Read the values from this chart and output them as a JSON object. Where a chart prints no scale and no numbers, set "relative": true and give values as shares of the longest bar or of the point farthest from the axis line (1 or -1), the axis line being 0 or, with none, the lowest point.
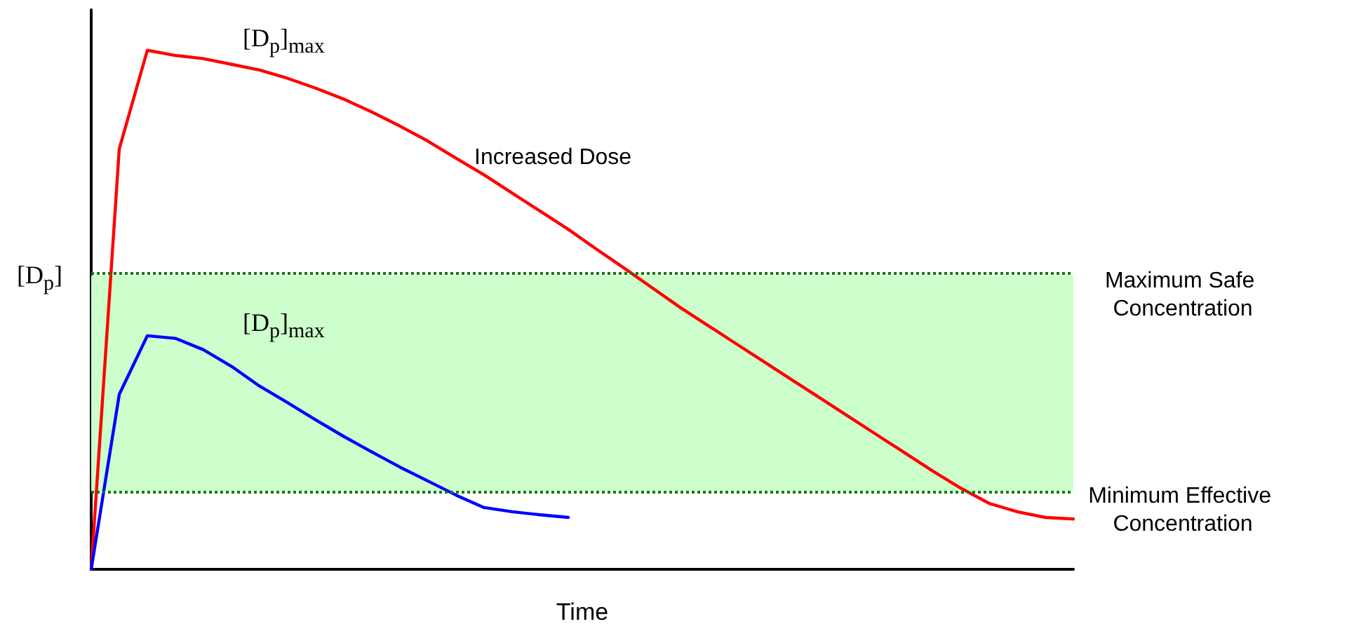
{
  "chart_data": {
    "type": "line",
    "relative": true,
    "xlabel": "Time",
    "ylabel": "[D$_{p}$]",
    "categories": [
      null,
      null,
      null,
      null,
      null,
      null,
      null,
      null,
      null,
      null,
      null,
      null,
      null,
      null,
      null,
      null,
      null,
      null,
      null,
      null,
      null,
      null,
      null,
      null,
      null,
      null,
      null,
      null,
      null,
      null,
      null,
      null,
      null,
      null,
      null,
      null
    ],
    "series": [
      {
        "name": "Increased Dose",
        "color": "#ff0000",
        "values": [
          0,
          0.81,
          1.0,
          0.99,
          0.984,
          0.973,
          0.962,
          0.946,
          0.927,
          0.906,
          0.881,
          0.854,
          0.825,
          0.792,
          0.76,
          0.725,
          0.69,
          0.655,
          0.617,
          0.58,
          0.542,
          0.504,
          0.469,
          0.434,
          0.399,
          0.364,
          0.329,
          0.294,
          0.259,
          0.224,
          0.189,
          0.156,
          0.127,
          0.111,
          0.1,
          0.097
        ]
      },
      {
        "color": "#0000ff",
        "values": [
          0,
          0.337,
          0.45,
          0.445,
          0.423,
          0.391,
          0.353,
          0.321,
          0.288,
          0.256,
          0.226,
          0.197,
          0.17,
          0.143,
          0.119,
          0.111,
          0.105,
          0.1,
          null,
          null,
          null,
          null,
          null,
          null,
          null,
          null,
          null,
          null,
          null,
          null,
          null,
          null,
          null,
          null,
          null,
          null
        ]
      }
    ],
    "bands": [
      {
        "axis": "y",
        "from": 0.151,
        "to": 0.566,
        "color": "#ccffcc"
      }
    ],
    "ref_lines": [
      {
        "axis": "y",
        "value": 0.566,
        "label": "Maximum Safe Concentration",
        "color": "#008000",
        "line_style": "dotted"
      },
      {
        "axis": "y",
        "value": 0.151,
        "label": "Minimum Effective Concentration",
        "color": "#008000",
        "line_style": "dotted"
      }
    ],
    "annotations": [
      "[D$_{p}$]$_{max}$",
      "[D$_{p}$]$_{max}$"
    ]
  }
}
